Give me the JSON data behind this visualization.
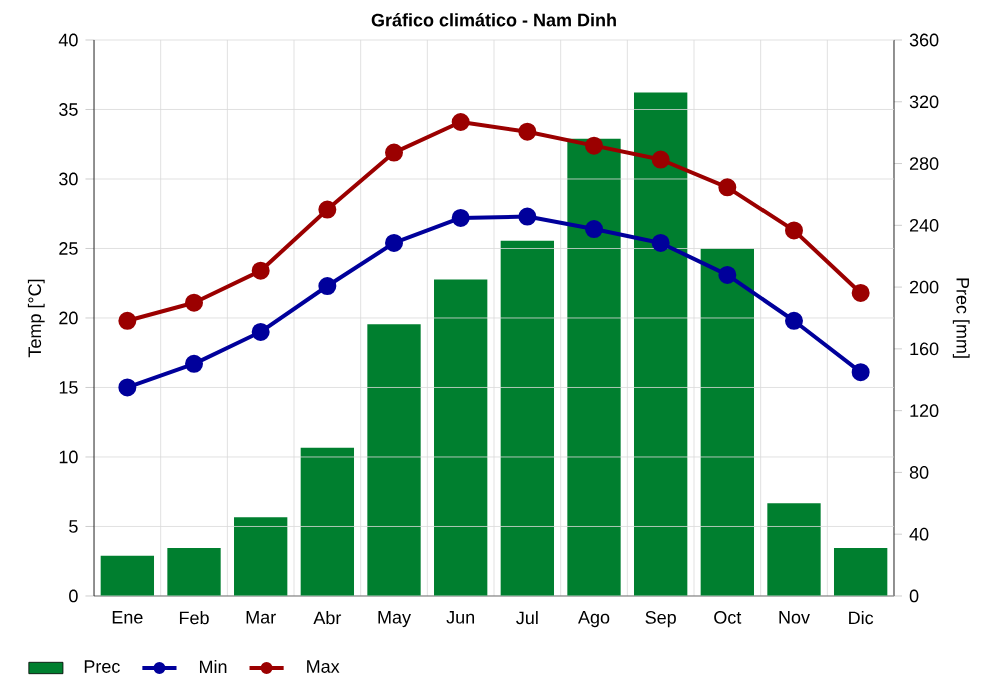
{
  "chart_data": {
    "type": "bar",
    "title": "Gráfico climático - Nam Dinh",
    "ylabel": "Temp [°C]",
    "y2label": "Prec [mm]",
    "categories": [
      "Ene",
      "Feb",
      "Mar",
      "Abr",
      "May",
      "Jun",
      "Jul",
      "Ago",
      "Sep",
      "Oct",
      "Nov",
      "Dic"
    ],
    "series": [
      {
        "name": "Prec",
        "axis": "y2",
        "color": "#007f2f",
        "values": [
          26,
          31,
          51,
          96,
          176,
          205,
          230,
          296,
          326,
          225,
          60,
          31
        ]
      },
      {
        "name": "Min",
        "type": "line",
        "color": "#00009b",
        "marker": "circle",
        "values": [
          15.0,
          16.7,
          19.0,
          22.3,
          25.4,
          27.2,
          27.3,
          26.4,
          25.4,
          23.1,
          19.8,
          16.1
        ]
      },
      {
        "name": "Max",
        "type": "line",
        "color": "#9b0000",
        "marker": "circle",
        "values": [
          19.8,
          21.1,
          23.4,
          27.8,
          31.9,
          34.1,
          33.4,
          32.4,
          31.4,
          29.4,
          26.3,
          21.8
        ]
      }
    ],
    "ylim": [
      0,
      40
    ],
    "yticks": [
      0,
      5,
      10,
      15,
      20,
      25,
      30,
      35,
      40
    ],
    "y2lim": [
      0,
      360
    ],
    "y2ticks": [
      0,
      40,
      80,
      120,
      160,
      200,
      240,
      280,
      320,
      360
    ],
    "grid": true,
    "legend": "bottom"
  }
}
